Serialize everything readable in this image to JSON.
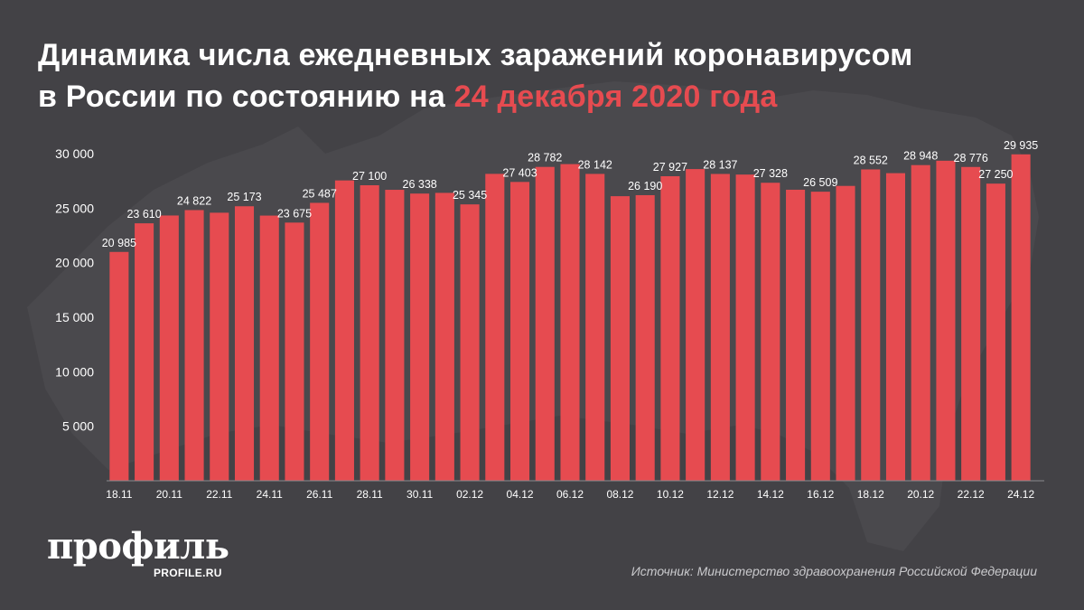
{
  "header": {
    "title_line1": "Динамика числа ежедневных заражений коронавирусом",
    "title_line2_prefix": "в России по состоянию на ",
    "title_line2_accent": "24 декабря 2020 года"
  },
  "footer": {
    "logo": "профиль",
    "logo_sub": "PROFILE.RU",
    "source": "Источник: Министерство здравоохранения Российской Федерации"
  },
  "colors": {
    "background": "#434246",
    "bar": "#e64b50",
    "accent": "#e64b50",
    "text": "#ffffff"
  },
  "chart_data": {
    "type": "bar",
    "title": "Динамика числа ежедневных заражений коронавирусом в России по состоянию на 24 декабря 2020 года",
    "xlabel": "",
    "ylabel": "",
    "ylim": [
      0,
      30000
    ],
    "yticks": [
      5000,
      10000,
      15000,
      20000,
      25000,
      30000
    ],
    "ytick_labels": [
      "5 000",
      "10 000",
      "15 000",
      "20 000",
      "25 000",
      "30 000"
    ],
    "grid": false,
    "categories": [
      "18.11",
      "19.11",
      "20.11",
      "21.11",
      "22.11",
      "23.11",
      "24.11",
      "25.11",
      "26.11",
      "27.11",
      "28.11",
      "29.11",
      "30.11",
      "01.12",
      "02.12",
      "03.12",
      "04.12",
      "05.12",
      "06.12",
      "07.12",
      "08.12",
      "09.12",
      "10.12",
      "11.12",
      "12.12",
      "13.12",
      "14.12",
      "15.12",
      "16.12",
      "17.12",
      "18.12",
      "19.12",
      "20.12",
      "21.12",
      "22.12",
      "23.12",
      "24.12"
    ],
    "values": [
      20985,
      23610,
      24326,
      24822,
      24581,
      25173,
      24318,
      23675,
      25487,
      27543,
      27100,
      26683,
      26338,
      26402,
      25345,
      28145,
      27403,
      28782,
      29039,
      28142,
      26097,
      26190,
      27927,
      28585,
      28137,
      28080,
      27328,
      26689,
      26509,
      27039,
      28552,
      28209,
      28948,
      29350,
      28776,
      27250,
      29935
    ],
    "x_tick_labels": [
      "18.11",
      "20.11",
      "22.11",
      "24.11",
      "26.11",
      "28.11",
      "30.11",
      "02.12",
      "04.12",
      "06.12",
      "08.12",
      "10.12",
      "12.12",
      "14.12",
      "16.12",
      "18.12",
      "20.12",
      "22.12",
      "24.12"
    ],
    "data_labels": [
      {
        "category": "18.11",
        "text": "20 985"
      },
      {
        "category": "19.11",
        "text": "23 610"
      },
      {
        "category": "21.11",
        "text": "24 822"
      },
      {
        "category": "23.11",
        "text": "25 173"
      },
      {
        "category": "25.11",
        "text": "23 675"
      },
      {
        "category": "26.11",
        "text": "25 487"
      },
      {
        "category": "28.11",
        "text": "27 100"
      },
      {
        "category": "30.11",
        "text": "26 338"
      },
      {
        "category": "02.12",
        "text": "25 345"
      },
      {
        "category": "04.12",
        "text": "27 403"
      },
      {
        "category": "05.12",
        "text": "28 782"
      },
      {
        "category": "07.12",
        "text": "28 142"
      },
      {
        "category": "09.12",
        "text": "26 190"
      },
      {
        "category": "10.12",
        "text": "27 927"
      },
      {
        "category": "12.12",
        "text": "28 137"
      },
      {
        "category": "14.12",
        "text": "27 328"
      },
      {
        "category": "16.12",
        "text": "26 509"
      },
      {
        "category": "18.12",
        "text": "28 552"
      },
      {
        "category": "20.12",
        "text": "28 948"
      },
      {
        "category": "22.12",
        "text": "28 776"
      },
      {
        "category": "23.12",
        "text": "27 250"
      },
      {
        "category": "24.12",
        "text": "29 935"
      }
    ]
  }
}
